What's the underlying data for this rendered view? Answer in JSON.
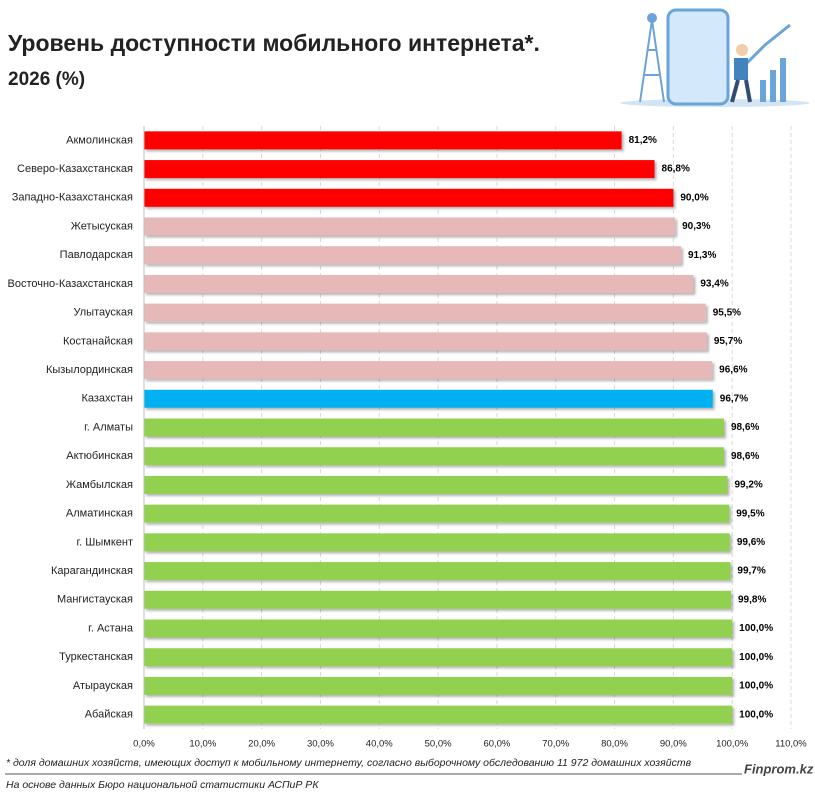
{
  "chart_data": {
    "type": "barh",
    "title": "Уровень доступности мобильного интернета*.",
    "subtitle": "2026 (%)",
    "categories": [
      "Акмолинская",
      "Северо-Казахстанская",
      "Западно-Казахстанская",
      "Жетысуская",
      "Павлодарская",
      "Восточно-Казахстанская",
      "Улытауская",
      "Костанайская",
      "Кызылординская",
      "Казахстан",
      "г. Алматы",
      "Актюбинская",
      "Жамбылская",
      "Алматинская",
      "г. Шымкент",
      "Карагандинская",
      "Мангистауская",
      "г. Астана",
      "Туркестанская",
      "Атырауская",
      "Абайская"
    ],
    "values": [
      81.2,
      86.8,
      90.0,
      90.3,
      91.3,
      93.4,
      95.5,
      95.7,
      96.6,
      96.7,
      98.6,
      98.6,
      99.2,
      99.5,
      99.6,
      99.7,
      99.8,
      100.0,
      100.0,
      100.0,
      100.0
    ],
    "value_labels": [
      "81,2%",
      "86,8%",
      "90,0%",
      "90,3%",
      "91,3%",
      "93,4%",
      "95,5%",
      "95,7%",
      "96,6%",
      "96,7%",
      "98,6%",
      "98,6%",
      "99,2%",
      "99,5%",
      "99,6%",
      "99,7%",
      "99,8%",
      "100,0%",
      "100,0%",
      "100,0%",
      "100,0%"
    ],
    "colors": [
      "#ff0000",
      "#ff0000",
      "#ff0000",
      "#e6b8b7",
      "#e6b8b7",
      "#e6b8b7",
      "#e6b8b7",
      "#e6b8b7",
      "#e6b8b7",
      "#00b0f0",
      "#92d050",
      "#92d050",
      "#92d050",
      "#92d050",
      "#92d050",
      "#92d050",
      "#92d050",
      "#92d050",
      "#92d050",
      "#92d050",
      "#92d050"
    ],
    "xlim": [
      0,
      110
    ],
    "xticks": [
      {
        "value": 0,
        "label": "0,0%"
      },
      {
        "value": 10,
        "label": "10,0%"
      },
      {
        "value": 20,
        "label": "20,0%"
      },
      {
        "value": 30,
        "label": "30,0%"
      },
      {
        "value": 40,
        "label": "40,0%"
      },
      {
        "value": 50,
        "label": "50,0%"
      },
      {
        "value": 60,
        "label": "60,0%"
      },
      {
        "value": 70,
        "label": "70,0%"
      },
      {
        "value": 80,
        "label": "80,0%"
      },
      {
        "value": 90,
        "label": "90,0%"
      },
      {
        "value": 100,
        "label": "100,0%"
      },
      {
        "value": 110,
        "label": "110,0%"
      }
    ],
    "grid": true,
    "footnote": "* доля домашних хозяйств, имеющих доступ к мобильному интернету, согласно выборочному обследованию 11 972 домашних хозяйств",
    "source": "На основе данных Бюро национальной статистики АСПиР РК",
    "brand": "Finprom.kz"
  }
}
